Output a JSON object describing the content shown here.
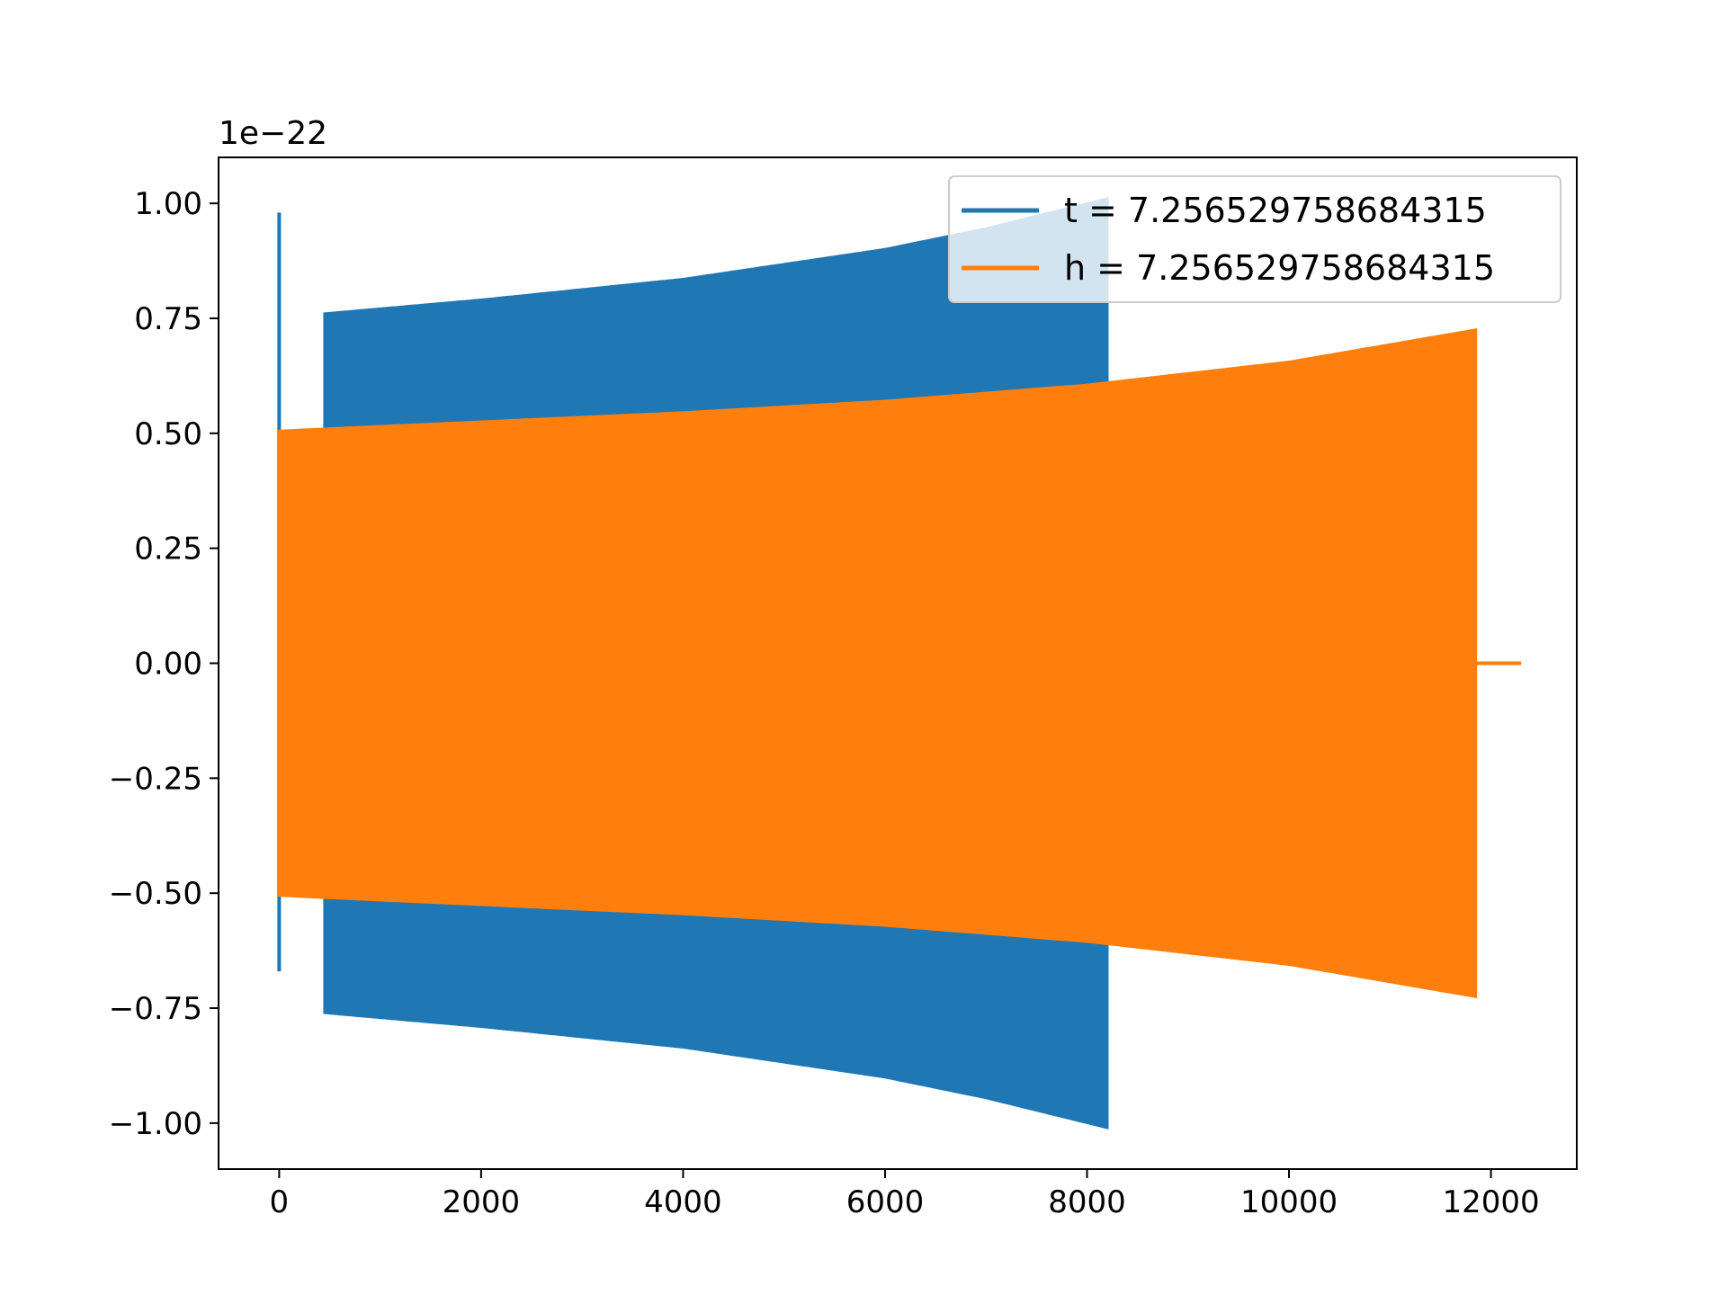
{
  "chart_data": {
    "type": "line",
    "title": "",
    "xlabel": "",
    "ylabel": "",
    "y_offset_label": "1e−22",
    "xlim": [
      -600,
      12850
    ],
    "ylim": [
      -1.1,
      1.1
    ],
    "x_ticks": [
      0,
      2000,
      4000,
      6000,
      8000,
      10000,
      12000
    ],
    "y_ticks": [
      1.0,
      0.75,
      0.5,
      0.25,
      0.0,
      -0.25,
      -0.5,
      -0.75,
      -1.0
    ],
    "x_tick_labels": [
      "0",
      "2000",
      "4000",
      "6000",
      "8000",
      "10000",
      "12000"
    ],
    "y_tick_labels": [
      "1.00",
      "0.75",
      "0.50",
      "0.25",
      "0.00",
      "−0.25",
      "−0.50",
      "−0.75",
      "−1.00"
    ],
    "grid": false,
    "legend_position": "top-right",
    "series": [
      {
        "name": "t = 7.256529758684315",
        "color": "#1f77b4",
        "spike": {
          "x": 0,
          "max": 0.98,
          "min": -0.67
        },
        "envelope": [
          {
            "x": 450,
            "amp": 0.76
          },
          {
            "x": 2000,
            "amp": 0.79
          },
          {
            "x": 4000,
            "amp": 0.835
          },
          {
            "x": 6000,
            "amp": 0.9
          },
          {
            "x": 7000,
            "amp": 0.945
          },
          {
            "x": 8200,
            "amp": 1.01
          }
        ]
      },
      {
        "name": "h = 7.256529758684315",
        "color": "#ff7f0e",
        "envelope": [
          {
            "x": 0,
            "amp": 0.505
          },
          {
            "x": 2000,
            "amp": 0.525
          },
          {
            "x": 4000,
            "amp": 0.545
          },
          {
            "x": 6000,
            "amp": 0.57
          },
          {
            "x": 8000,
            "amp": 0.605
          },
          {
            "x": 10000,
            "amp": 0.655
          },
          {
            "x": 11850,
            "amp": 0.725
          }
        ],
        "tail": {
          "x_start": 11850,
          "x_end": 12300,
          "y": 0.0
        }
      }
    ]
  }
}
